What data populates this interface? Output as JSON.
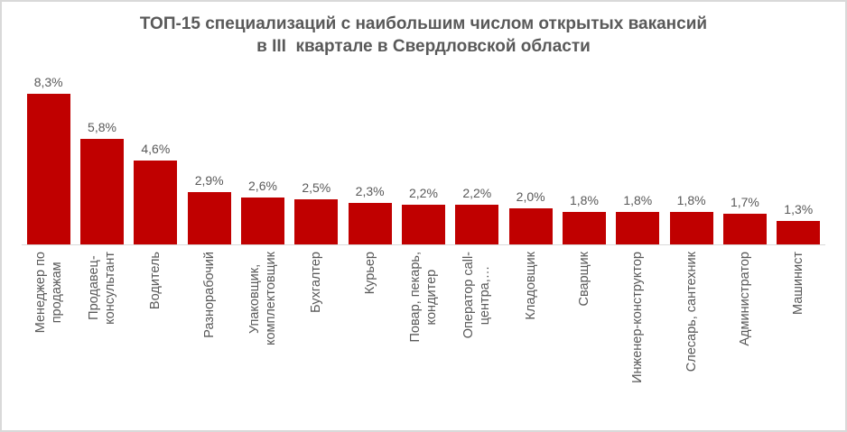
{
  "chart": {
    "title": "ТОП-15 специализаций с наибольшим числом открытых вакансий\nв III  квартале в Свердловской области"
  },
  "chart_data": {
    "type": "bar",
    "title": "ТОП-15 специализаций с наибольшим числом открытых вакансий\nв III  квартале в Свердловской области",
    "categories": [
      "Менеджер по\nпродажам",
      "Продавец-\nконсультант",
      "Водитель",
      "Разнорабочий",
      "Упаковщик,\nкомплектовщик",
      "Бухгалтер",
      "Курьер",
      "Повар, пекарь,\nкондитер",
      "Оператор call-\nцентра,…",
      "Кладовщик",
      "Сварщик",
      "Инженер-конструктор",
      "Слесарь, сантехник",
      "Администратор",
      "Машинист"
    ],
    "values": [
      8.3,
      5.8,
      4.6,
      2.9,
      2.6,
      2.5,
      2.3,
      2.2,
      2.2,
      2.0,
      1.8,
      1.8,
      1.8,
      1.7,
      1.3
    ],
    "value_labels": [
      "8,3%",
      "5,8%",
      "4,6%",
      "2,9%",
      "2,6%",
      "2,5%",
      "2,3%",
      "2,2%",
      "2,2%",
      "2,0%",
      "1,8%",
      "1,8%",
      "1,8%",
      "1,7%",
      "1,3%"
    ],
    "xlabel": "",
    "ylabel": "",
    "ylim": [
      0,
      8.8
    ],
    "grid": false,
    "legend": false,
    "category_label_rotation": -90,
    "colors": {
      "bar": "#C00000",
      "value_label": "#595959",
      "category_label": "#595959",
      "title": "#595959",
      "axis_line": "#D9D9D9",
      "frame_border": "#D9D9D9",
      "background": "#FFFFFF"
    }
  }
}
